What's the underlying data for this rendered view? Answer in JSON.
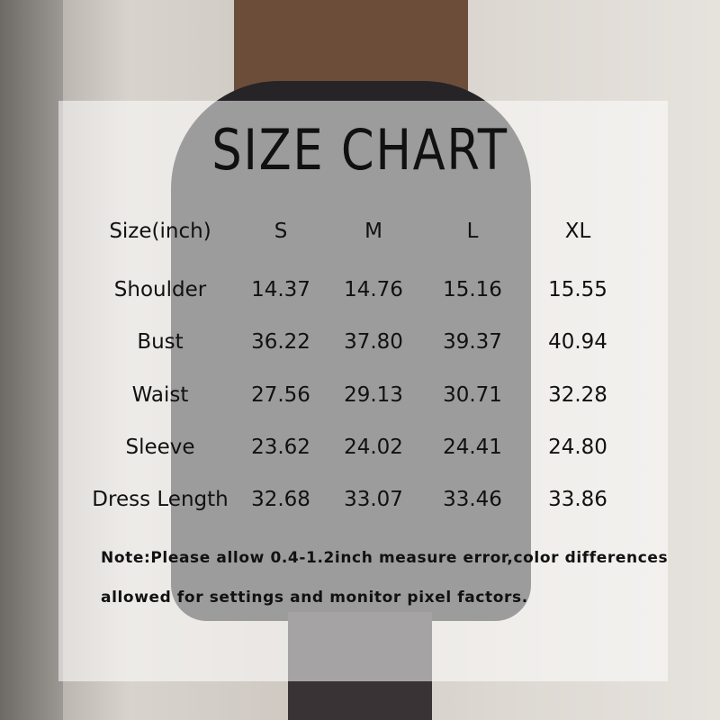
{
  "title": "SIZE CHART",
  "table": {
    "headers": [
      "Size(inch)",
      "S",
      "M",
      "L",
      "XL"
    ],
    "rows": [
      {
        "label": "Shoulder",
        "values": [
          "14.37",
          "14.76",
          "15.16",
          "15.55"
        ]
      },
      {
        "label": "Bust",
        "values": [
          "36.22",
          "37.80",
          "39.37",
          "40.94"
        ]
      },
      {
        "label": "Waist",
        "values": [
          "27.56",
          "29.13",
          "30.71",
          "32.28"
        ]
      },
      {
        "label": "Sleeve",
        "values": [
          "23.62",
          "24.02",
          "24.41",
          "24.80"
        ]
      },
      {
        "label": "Dress Length",
        "values": [
          "32.68",
          "33.07",
          "33.46",
          "33.86"
        ]
      }
    ]
  },
  "note": {
    "line1": "Note:Please allow 0.4-1.2inch measure error,color differences",
    "line2": "allowed for settings and monitor pixel factors."
  }
}
